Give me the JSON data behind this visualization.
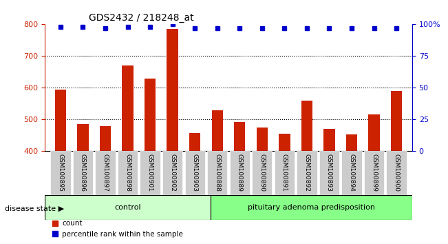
{
  "title": "GDS2432 / 218248_at",
  "samples": [
    "GSM100895",
    "GSM100896",
    "GSM100897",
    "GSM100898",
    "GSM100901",
    "GSM100902",
    "GSM100903",
    "GSM100888",
    "GSM100889",
    "GSM100890",
    "GSM100891",
    "GSM100892",
    "GSM100893",
    "GSM100894",
    "GSM100899",
    "GSM100900"
  ],
  "counts": [
    595,
    485,
    480,
    670,
    630,
    785,
    457,
    530,
    493,
    475,
    455,
    560,
    470,
    453,
    517,
    590
  ],
  "percentiles": [
    98,
    98,
    97,
    98,
    98,
    100,
    97,
    97,
    97,
    97,
    97,
    97,
    97,
    97,
    97,
    97
  ],
  "groups": [
    "control",
    "control",
    "control",
    "control",
    "control",
    "control",
    "control",
    "pituitary adenoma predisposition",
    "pituitary adenoma predisposition",
    "pituitary adenoma predisposition",
    "pituitary adenoma predisposition",
    "pituitary adenoma predisposition",
    "pituitary adenoma predisposition",
    "pituitary adenoma predisposition",
    "pituitary adenoma predisposition",
    "pituitary adenoma predisposition"
  ],
  "ylim_left": [
    400,
    800
  ],
  "ylim_right": [
    0,
    100
  ],
  "bar_color": "#cc2200",
  "dot_color": "#0000cc",
  "background_color": "#ffffff",
  "grid_color": "#000000",
  "control_color": "#ccffcc",
  "adenoma_color": "#88ff88",
  "tick_label_bg": "#cccccc",
  "yticks_left": [
    400,
    500,
    600,
    700,
    800
  ],
  "yticks_right": [
    0,
    25,
    50,
    75,
    100
  ],
  "control_label": "control",
  "adenoma_label": "pituitary adenoma predisposition",
  "disease_state_label": "disease state",
  "legend_count": "count",
  "legend_percentile": "percentile rank within the sample",
  "n_control": 7,
  "n_adenoma": 9
}
